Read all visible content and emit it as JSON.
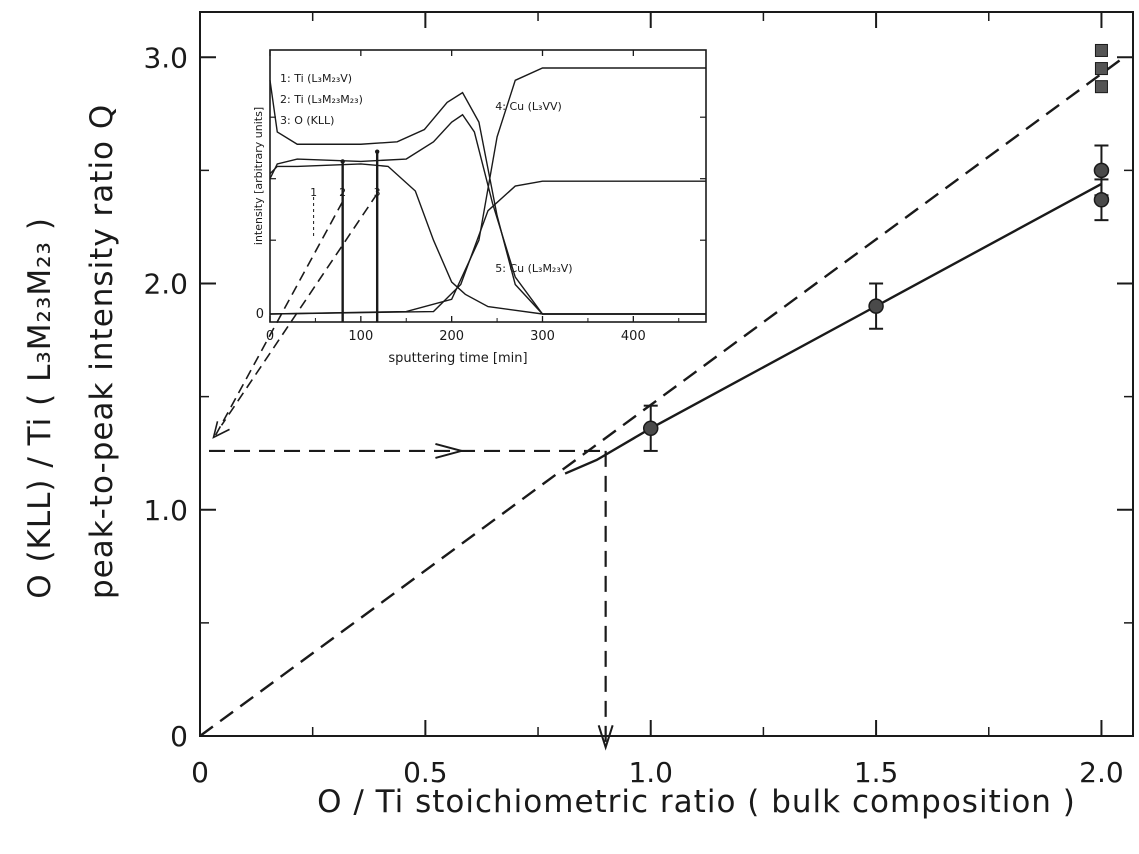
{
  "chart_data": [
    {
      "type": "scatter",
      "xlabel": "O / Ti  stoichiometric ratio ( bulk composition )",
      "ylabel_line1": "O (KLL) / Ti ( L₃M₂₃M₂₃ )",
      "ylabel_line2": "peak-to-peak intensity ratio Q",
      "xlim": [
        0,
        2.07
      ],
      "ylim": [
        0,
        3.2
      ],
      "x_ticks": [
        0,
        0.5,
        1.0,
        1.5,
        2.0
      ],
      "x_tick_labels": [
        "0",
        "0.5",
        "1.0",
        "1.5",
        "2.0"
      ],
      "y_ticks": [
        0,
        1.0,
        2.0,
        3.0
      ],
      "y_tick_labels": [
        "0",
        "1.0",
        "2.0",
        "3.0"
      ],
      "grid": false,
      "series": [
        {
          "marker": "circle",
          "points": [
            {
              "x": 1.0,
              "y": 1.36,
              "err": 0.1
            },
            {
              "x": 1.5,
              "y": 1.9,
              "err": 0.1
            },
            {
              "x": 2.0,
              "y": 2.5,
              "err": 0.11
            },
            {
              "x": 2.0,
              "y": 2.37,
              "err": 0.09
            }
          ]
        },
        {
          "marker": "square",
          "points": [
            {
              "x": 2.0,
              "y": 3.03
            },
            {
              "x": 2.0,
              "y": 2.95
            },
            {
              "x": 2.0,
              "y": 2.87
            }
          ]
        }
      ],
      "lines": [
        {
          "style": "solid",
          "points": [
            [
              0.81,
              1.16
            ],
            [
              0.88,
              1.22
            ],
            [
              1.0,
              1.36
            ],
            [
              1.5,
              1.9
            ],
            [
              2.0,
              2.44
            ]
          ]
        },
        {
          "style": "dashed",
          "points": [
            [
              0,
              0
            ],
            [
              2.05,
              3.0
            ]
          ]
        }
      ],
      "guides": {
        "q_level": 1.26,
        "x_result": 0.9
      }
    },
    {
      "type": "line",
      "xlabel": "sputtering time [min]",
      "ylabel": "intensity [arbitrary units]",
      "xlim": [
        0,
        480
      ],
      "x_ticks": [
        0,
        100,
        200,
        300,
        400
      ],
      "x_tick_labels": [
        "0",
        "100",
        "200",
        "300",
        "400"
      ],
      "y_origin_label": "0",
      "legend": [
        "1: Ti (L₃M₂₃V)",
        "2: Ti (L₃M₂₃M₂₃)",
        "3: O (KLL)"
      ],
      "markers": [
        {
          "label": "1",
          "x": 48
        },
        {
          "label": "2",
          "x": 80
        },
        {
          "label": "3",
          "x": 118
        }
      ],
      "series": [
        {
          "name": "4: Cu (L₃VV)",
          "points": [
            [
              0,
              0
            ],
            [
              150,
              0.01
            ],
            [
              200,
              0.06
            ],
            [
              230,
              0.3
            ],
            [
              250,
              0.72
            ],
            [
              270,
              0.95
            ],
            [
              300,
              1.0
            ],
            [
              480,
              1.0
            ]
          ]
        },
        {
          "name": "5: Cu (L₃M₂₃V)",
          "points": [
            [
              0,
              0
            ],
            [
              180,
              0.01
            ],
            [
              210,
              0.12
            ],
            [
              240,
              0.42
            ],
            [
              270,
              0.52
            ],
            [
              300,
              0.54
            ],
            [
              480,
              0.54
            ]
          ]
        },
        {
          "points": [
            [
              0,
              0.95
            ],
            [
              8,
              0.74
            ],
            [
              30,
              0.69
            ],
            [
              100,
              0.69
            ],
            [
              140,
              0.7
            ],
            [
              170,
              0.75
            ],
            [
              195,
              0.86
            ],
            [
              212,
              0.9
            ],
            [
              230,
              0.78
            ],
            [
              250,
              0.4
            ],
            [
              270,
              0.12
            ],
            [
              300,
              0.0
            ],
            [
              480,
              0.0
            ]
          ]
        },
        {
          "points": [
            [
              0,
              0.55
            ],
            [
              8,
              0.61
            ],
            [
              30,
              0.63
            ],
            [
              100,
              0.62
            ],
            [
              150,
              0.63
            ],
            [
              180,
              0.7
            ],
            [
              200,
              0.78
            ],
            [
              212,
              0.81
            ],
            [
              225,
              0.74
            ],
            [
              245,
              0.45
            ],
            [
              270,
              0.15
            ],
            [
              300,
              0.0
            ],
            [
              480,
              0.0
            ]
          ]
        },
        {
          "points": [
            [
              0,
              0.57
            ],
            [
              8,
              0.6
            ],
            [
              30,
              0.6
            ],
            [
              100,
              0.61
            ],
            [
              130,
              0.6
            ],
            [
              160,
              0.5
            ],
            [
              180,
              0.3
            ],
            [
              200,
              0.13
            ],
            [
              215,
              0.08
            ],
            [
              240,
              0.03
            ],
            [
              300,
              0.0
            ],
            [
              480,
              0.0
            ]
          ]
        }
      ],
      "drop_markers": [
        {
          "x": 80,
          "y": 0.62
        },
        {
          "x": 118,
          "y": 0.66
        }
      ]
    }
  ]
}
